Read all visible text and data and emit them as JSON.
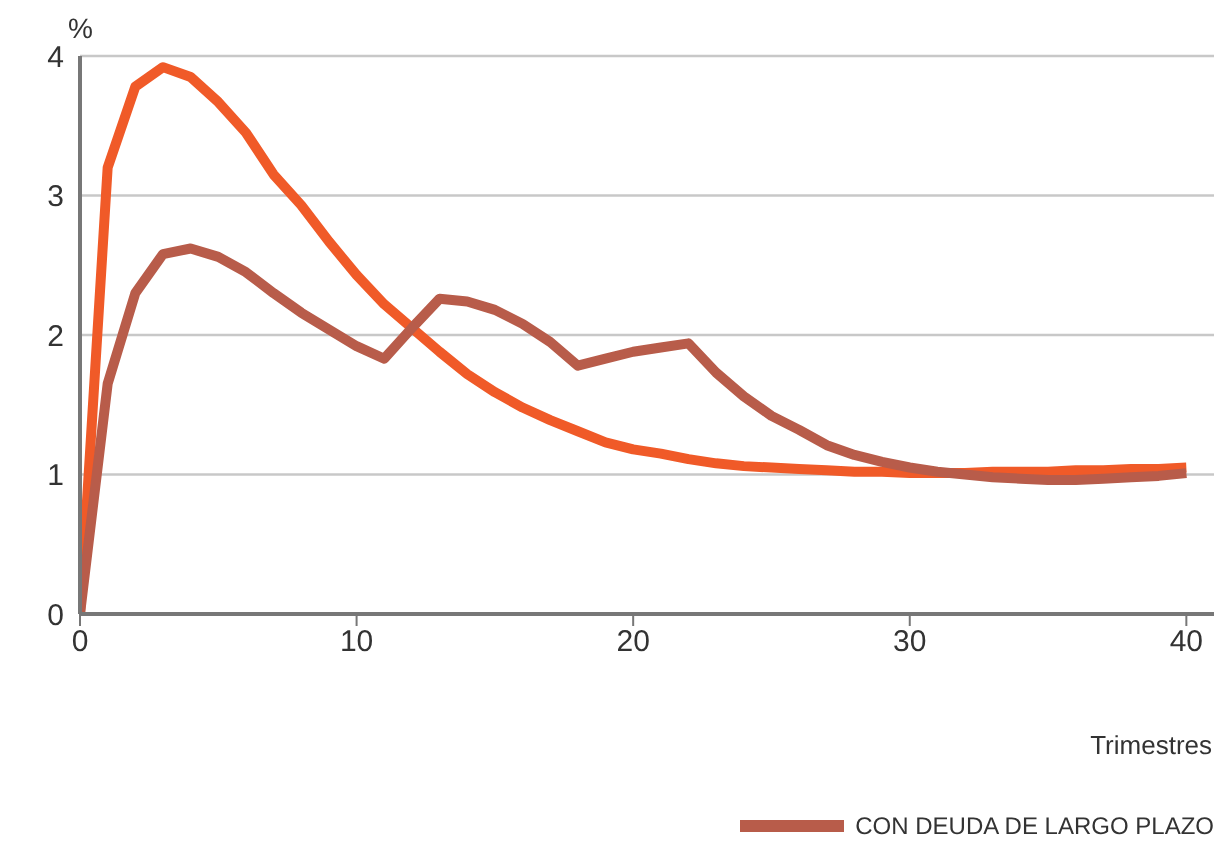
{
  "chart_data": {
    "type": "line",
    "ylabel": "%",
    "xlabel": "Trimestres",
    "x": [
      0,
      1,
      2,
      3,
      4,
      5,
      6,
      7,
      8,
      9,
      10,
      11,
      12,
      13,
      14,
      15,
      16,
      17,
      18,
      19,
      20,
      21,
      22,
      23,
      24,
      25,
      26,
      27,
      28,
      29,
      30,
      31,
      32,
      33,
      34,
      35,
      36,
      37,
      38,
      39,
      40
    ],
    "series": [
      {
        "color": "#f05a28",
        "values": [
          0,
          3.2,
          3.78,
          3.92,
          3.85,
          3.67,
          3.45,
          3.15,
          2.93,
          2.67,
          2.43,
          2.22,
          2.05,
          1.88,
          1.72,
          1.59,
          1.48,
          1.39,
          1.31,
          1.23,
          1.18,
          1.15,
          1.11,
          1.08,
          1.06,
          1.05,
          1.04,
          1.03,
          1.02,
          1.02,
          1.01,
          1.01,
          1.01,
          1.02,
          1.02,
          1.02,
          1.03,
          1.03,
          1.04,
          1.04,
          1.05
        ]
      },
      {
        "name": "CON DEUDA DE LARGO PLAZO",
        "color": "#b85c4a",
        "values": [
          0,
          1.65,
          2.3,
          2.58,
          2.62,
          2.56,
          2.45,
          2.3,
          2.16,
          2.04,
          1.92,
          1.83,
          2.05,
          2.26,
          2.24,
          2.18,
          2.08,
          1.95,
          1.78,
          1.83,
          1.88,
          1.91,
          1.94,
          1.73,
          1.56,
          1.42,
          1.32,
          1.21,
          1.14,
          1.09,
          1.05,
          1.02,
          1.0,
          0.98,
          0.97,
          0.96,
          0.96,
          0.97,
          0.98,
          0.99,
          1.01
        ]
      }
    ],
    "xlim": [
      0,
      41
    ],
    "xticks": [
      0,
      10,
      20,
      30,
      40
    ],
    "ylim": [
      0,
      4
    ],
    "yticks": [
      0,
      1,
      2,
      3,
      4
    ],
    "grid": "y",
    "legend": "bottom right",
    "marker": "none",
    "line_style": "solid"
  }
}
